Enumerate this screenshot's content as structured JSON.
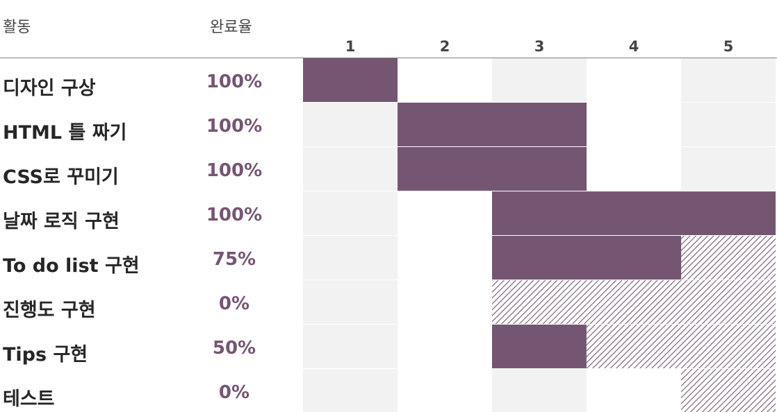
{
  "header": {
    "activity_label": "활동",
    "completion_label": "완료율"
  },
  "colors": {
    "done": "#745672",
    "remaining_hatch": "#745672",
    "stripe_light": "#f2f2f2",
    "stripe_white": "#ffffff",
    "text_dark": "#262626",
    "header_text": "#444444",
    "axis_line": "#7f7f7f"
  },
  "chart_data": {
    "type": "gantt",
    "periods": [
      "1",
      "2",
      "3",
      "4",
      "5"
    ],
    "tasks": [
      {
        "activity": "디자인 구상",
        "completion": "100%",
        "start": 1,
        "duration": 1,
        "percent": 100
      },
      {
        "activity": "HTML 틀 짜기",
        "completion": "100%",
        "start": 2,
        "duration": 2,
        "percent": 100
      },
      {
        "activity": "CSS로 꾸미기",
        "completion": "100%",
        "start": 2,
        "duration": 2,
        "percent": 100
      },
      {
        "activity": "날짜 로직 구현",
        "completion": "100%",
        "start": 3,
        "duration": 3,
        "percent": 100
      },
      {
        "activity": "To do list 구현",
        "completion": "75%",
        "start": 3,
        "duration": 3,
        "percent": 66.7
      },
      {
        "activity": "진행도 구현",
        "completion": "0%",
        "start": 3,
        "duration": 3,
        "percent": 0
      },
      {
        "activity": "Tips 구현",
        "completion": "50%",
        "start": 3,
        "duration": 3,
        "percent": 33.3
      },
      {
        "activity": "테스트",
        "completion": "0%",
        "start": 5,
        "duration": 1,
        "percent": 0
      }
    ]
  }
}
